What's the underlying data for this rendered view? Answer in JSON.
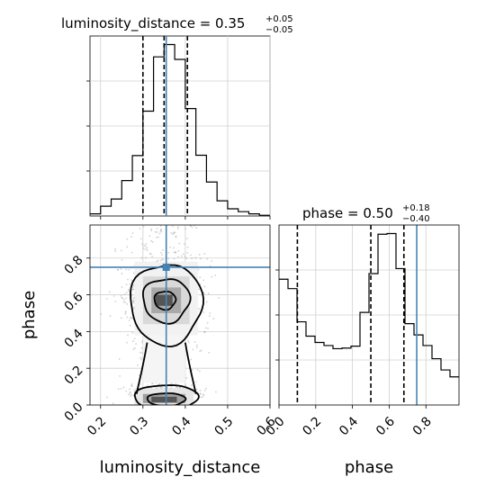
{
  "chart_data": {
    "type": "corner",
    "parameters": [
      "luminosity_distance",
      "phase"
    ],
    "truth": {
      "luminosity_distance": 0.355,
      "phase": 0.75
    },
    "truth_color": "#4682b4",
    "line_color": "#000000",
    "panels": [
      {
        "id": "hist-luminosity_distance",
        "type": "histogram",
        "title": {
          "prefix": "luminosity_distance = 0.35",
          "plus": "+0.05",
          "minus": "−0.05"
        },
        "xlim": [
          0.175,
          0.6
        ],
        "quantiles": [
          0.3,
          0.35,
          0.405
        ],
        "bin_edges": [
          0.175,
          0.2,
          0.225,
          0.25,
          0.275,
          0.3,
          0.325,
          0.35,
          0.375,
          0.4,
          0.425,
          0.45,
          0.475,
          0.5,
          0.525,
          0.55,
          0.575,
          0.6
        ],
        "counts": [
          0.6,
          2.7,
          4.7,
          9.8,
          16.7,
          29.0,
          44.0,
          47.4,
          43.3,
          29.7,
          16.8,
          9.4,
          4.2,
          2.0,
          1.2,
          0.6,
          0.2
        ]
      },
      {
        "id": "hist-phase",
        "type": "histogram",
        "title": {
          "prefix": "phase = 0.50",
          "plus": "+0.18",
          "minus": "−0.40"
        },
        "xlim": [
          0.0,
          0.98
        ],
        "quantiles": [
          0.1,
          0.5,
          0.68
        ],
        "bin_edges": [
          0.0,
          0.049,
          0.098,
          0.147,
          0.196,
          0.245,
          0.294,
          0.343,
          0.392,
          0.441,
          0.49,
          0.539,
          0.588,
          0.637,
          0.686,
          0.735,
          0.784,
          0.833,
          0.882,
          0.931,
          0.98
        ],
        "counts": [
          20.1,
          18.6,
          13.3,
          11.0,
          10.0,
          9.5,
          9.0,
          9.1,
          9.4,
          14.8,
          21.0,
          27.3,
          27.4,
          21.8,
          13.0,
          11.2,
          9.5,
          7.4,
          5.6,
          4.5
        ]
      },
      {
        "id": "joint-phase-vs-luminosity_distance",
        "type": "2d-density",
        "xlim": [
          0.175,
          0.6
        ],
        "ylim": [
          0.0,
          0.98
        ]
      }
    ],
    "axes": {
      "xlabel_left": "luminosity_distance",
      "xlabel_right": "phase",
      "ylabel_joint": "phase",
      "xticks_luminosity_distance": [
        "0.2",
        "0.3",
        "0.4",
        "0.5",
        "0.6"
      ],
      "xticks_phase": [
        "0.0",
        "0.2",
        "0.4",
        "0.6",
        "0.8"
      ],
      "yticks_phase": [
        "0.0",
        "0.2",
        "0.4",
        "0.6",
        "0.8"
      ]
    },
    "grid": true
  }
}
